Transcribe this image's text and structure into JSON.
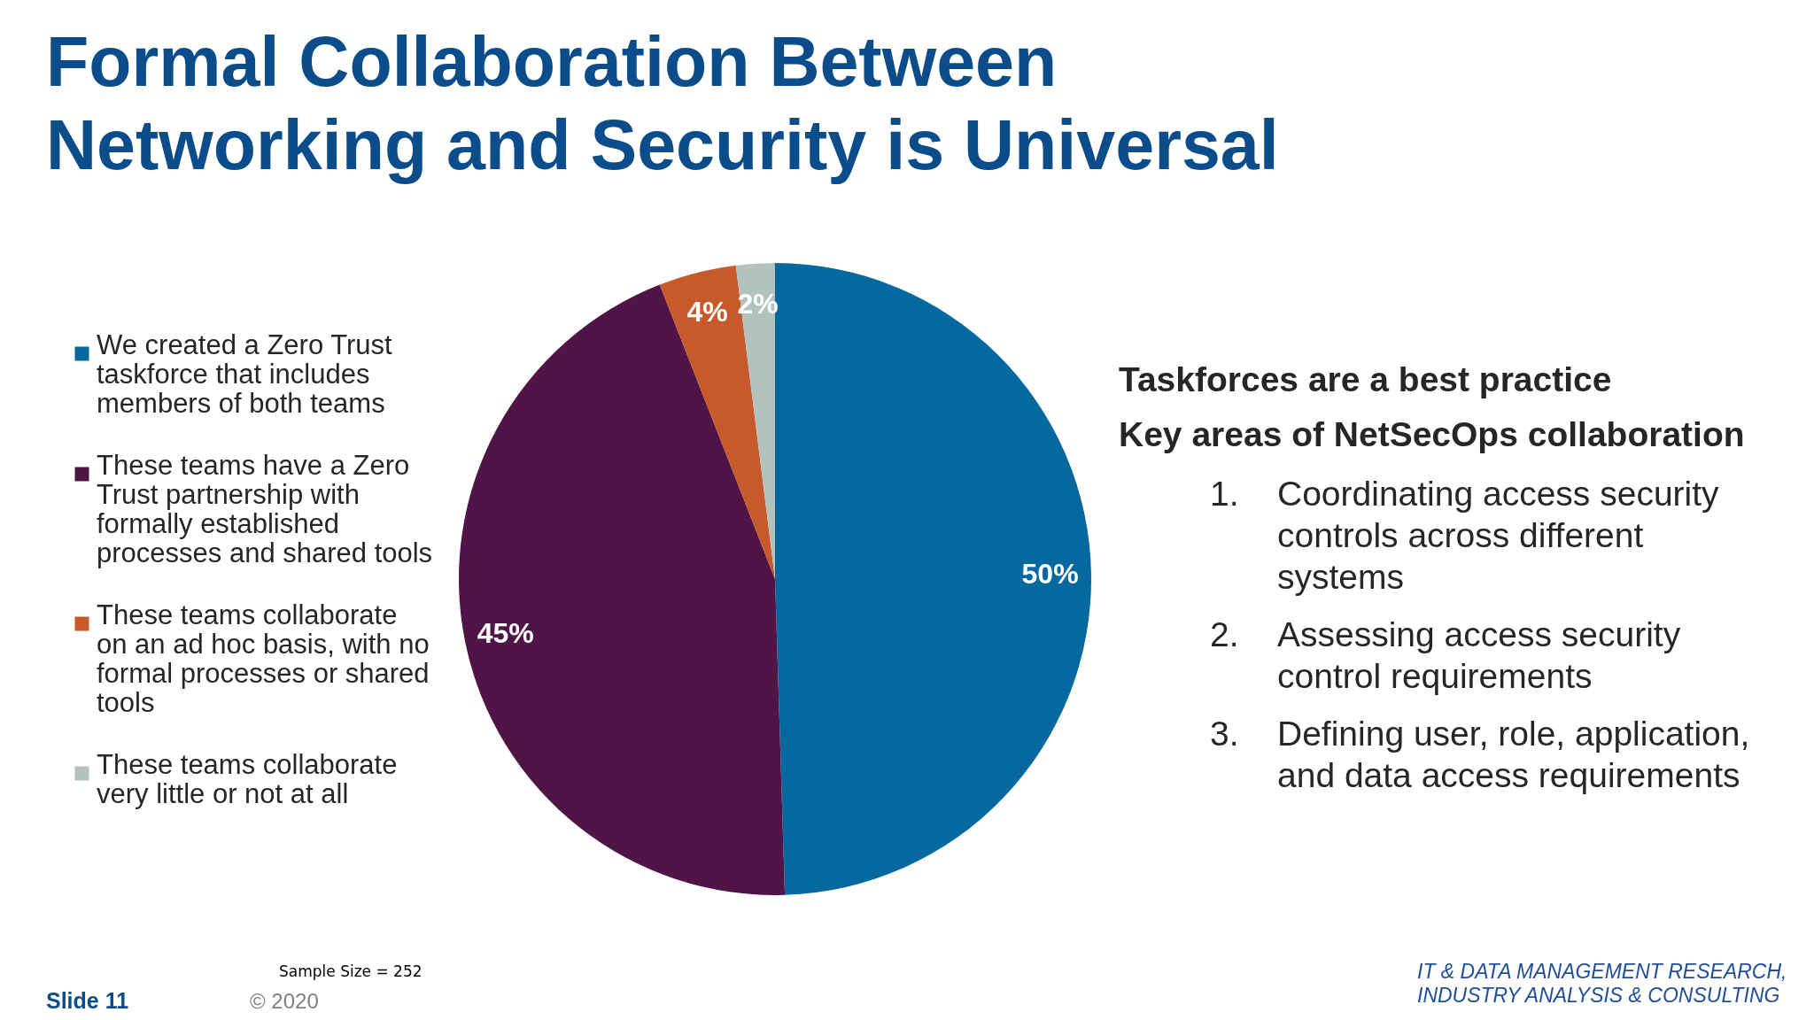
{
  "chart_data": {
    "type": "pie",
    "title": "Formal Collaboration Between Networking and Security is Universal",
    "categories": [
      "We created a Zero Trust taskforce that includes members of both teams",
      "These teams have a Zero Trust partnership with formally established processes and shared tools",
      "These teams collaborate on an ad hoc basis, with no formal processes or shared tools",
      "These teams collaborate very little or not at all"
    ],
    "values": [
      50,
      45,
      4,
      2
    ],
    "colors": [
      "#05699f",
      "#511446",
      "#c65a2b",
      "#b2c3bd"
    ],
    "value_labels": [
      "50%",
      "45%",
      "4%",
      "2%"
    ],
    "legend": "left",
    "annotations": [
      "Taskforces are a best practice",
      "Key areas of NetSecOps collaboration",
      "1. Coordinating access security controls across different systems",
      "2. Assessing access security control requirements",
      "3. Defining user, role, application, and data access requirements",
      "Sample Size = 252",
      "Slide 11",
      "© 2020",
      "IT & DATA MANAGEMENT RESEARCH, INDUSTRY ANALYSIS & CONSULTING"
    ]
  }
}
